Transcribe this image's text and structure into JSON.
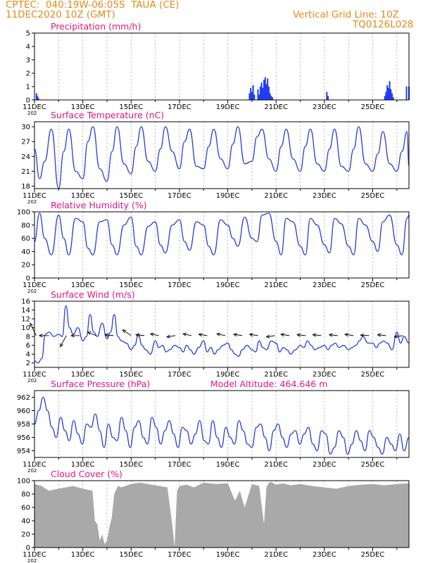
{
  "header": {
    "line1": "CPTEC:  040:19W-06:05S  TAUA (CE)",
    "line2": "11DEC2020 10Z (GMT)",
    "grid_note": "Vertical Grid Line: 10Z",
    "code": "TQ0126L028"
  },
  "colors": {
    "header": "#e08a1a",
    "title": "#e0157a",
    "series": "#2a3fd6",
    "bars": "#1f3df0",
    "cloud": "#a9a9a9",
    "model_alt": "#e0157a"
  },
  "x_tick_labels": [
    "11DEC",
    "13DEC",
    "15DEC",
    "17DEC",
    "19DEC",
    "21DEC",
    "23DEC",
    "25DEC"
  ],
  "year_fragment": "202",
  "chart_data": [
    {
      "id": "precip",
      "type": "bar",
      "title": "Precipitation (mm/h)",
      "ylim": [
        0,
        5
      ],
      "yticks": [
        0,
        1,
        2,
        3,
        4,
        5
      ],
      "x_unit": "days since 11DEC2020 10Z",
      "series": [
        {
          "x": [
            0.08,
            0.12,
            0.16,
            8.9,
            8.95,
            9.0,
            9.05,
            9.1,
            9.25,
            9.3,
            9.35,
            9.4,
            9.45,
            9.5,
            9.55,
            9.6,
            9.65,
            9.7,
            9.75,
            9.8,
            9.85,
            12.1,
            12.15,
            14.5,
            14.55,
            14.6,
            14.65,
            14.7,
            14.75,
            14.8,
            14.85,
            15.4,
            15.5
          ],
          "values": [
            0.5,
            0.3,
            0.15,
            0.5,
            0.9,
            0.6,
            1.1,
            0.4,
            0.8,
            0.4,
            1.0,
            1.3,
            0.9,
            1.5,
            1.7,
            1.2,
            1.6,
            1.0,
            0.5,
            0.3,
            0.2,
            0.6,
            0.3,
            0.3,
            0.6,
            1.1,
            0.9,
            1.4,
            0.8,
            0.5,
            0.2,
            1.0,
            1.0
          ]
        }
      ]
    },
    {
      "id": "temp",
      "type": "line",
      "title": "Surface Temperature (nC)",
      "ylim": [
        17.5,
        31
      ],
      "yticks": [
        18,
        21,
        24,
        27,
        30
      ],
      "series": [
        {
          "x": [
            0,
            0.21,
            0.42,
            0.7,
            1,
            1.21,
            1.42,
            1.7,
            2,
            2.21,
            2.42,
            2.7,
            3,
            3.21,
            3.42,
            3.7,
            4,
            4.21,
            4.42,
            4.7,
            5,
            5.21,
            5.42,
            5.7,
            6,
            6.21,
            6.42,
            6.7,
            7,
            7.21,
            7.42,
            7.7,
            8,
            8.21,
            8.42,
            8.7,
            9,
            9.21,
            9.42,
            9.7,
            10,
            10.21,
            10.42,
            10.7,
            11,
            11.21,
            11.42,
            11.7,
            12,
            12.21,
            12.42,
            12.7,
            13,
            13.21,
            13.42,
            13.7,
            14,
            14.21,
            14.42,
            14.7,
            15,
            15.21,
            15.42,
            15.5
          ],
          "values": [
            25.5,
            19.5,
            23,
            29.5,
            17.5,
            25,
            29.5,
            21,
            19.5,
            27,
            30,
            21.5,
            19,
            25,
            30,
            22.5,
            20.5,
            26,
            30,
            23,
            21,
            25.5,
            30,
            25,
            21.5,
            27,
            29.5,
            22,
            21.5,
            26,
            29.5,
            23.5,
            21.5,
            26.5,
            30,
            22.5,
            23,
            28,
            29.5,
            23.5,
            21,
            26,
            29.5,
            23.5,
            21,
            26,
            29.5,
            22.5,
            21,
            25.5,
            29.5,
            22,
            21,
            25.5,
            30,
            22.5,
            21,
            24.5,
            29,
            22.5,
            21,
            25,
            29,
            22
          ]
        }
      ]
    },
    {
      "id": "rh",
      "type": "line",
      "title": "Relative Humidity (%)",
      "ylim": [
        0,
        100
      ],
      "yticks": [
        0,
        20,
        40,
        60,
        80,
        100
      ],
      "series": [
        {
          "x": [
            0,
            0.21,
            0.42,
            0.7,
            1,
            1.21,
            1.42,
            1.7,
            2,
            2.21,
            2.42,
            2.7,
            3,
            3.21,
            3.42,
            3.7,
            4,
            4.21,
            4.42,
            4.7,
            5,
            5.21,
            5.42,
            5.7,
            6,
            6.21,
            6.42,
            6.7,
            7,
            7.21,
            7.42,
            7.7,
            8,
            8.21,
            8.42,
            8.7,
            9,
            9.21,
            9.42,
            9.7,
            10,
            10.21,
            10.42,
            10.7,
            11,
            11.21,
            11.42,
            11.7,
            12,
            12.21,
            12.42,
            12.7,
            13,
            13.21,
            13.42,
            13.7,
            14,
            14.21,
            14.42,
            14.7,
            15,
            15.21,
            15.42,
            15.5
          ],
          "values": [
            55,
            98,
            60,
            35,
            95,
            60,
            35,
            90,
            85,
            45,
            35,
            85,
            88,
            50,
            35,
            80,
            92,
            48,
            35,
            78,
            85,
            50,
            38,
            80,
            88,
            55,
            42,
            85,
            80,
            48,
            35,
            88,
            80,
            60,
            48,
            92,
            60,
            55,
            95,
            98,
            55,
            35,
            90,
            85,
            48,
            35,
            90,
            80,
            50,
            38,
            90,
            82,
            48,
            35,
            90,
            80,
            55,
            40,
            85,
            95,
            50,
            35,
            90,
            95
          ]
        }
      ]
    },
    {
      "id": "wind",
      "type": "line",
      "title": "Surface Wind (m/s)",
      "ylim": [
        1,
        16
      ],
      "yticks": [
        2,
        4,
        6,
        8,
        10,
        12,
        14,
        16
      ],
      "series": [
        {
          "x": [
            0,
            0.15,
            0.3,
            0.45,
            0.6,
            0.8,
            1,
            1.15,
            1.3,
            1.45,
            1.6,
            1.8,
            2,
            2.15,
            2.3,
            2.45,
            2.6,
            2.8,
            3,
            3.15,
            3.3,
            3.45,
            3.6,
            3.8,
            4,
            4.15,
            4.3,
            4.45,
            4.6,
            4.8,
            5,
            5.15,
            5.3,
            5.45,
            5.6,
            5.8,
            6,
            6.15,
            6.3,
            6.45,
            6.6,
            6.8,
            7,
            7.15,
            7.3,
            7.45,
            7.6,
            7.8,
            8,
            8.15,
            8.3,
            8.45,
            8.6,
            8.8,
            9,
            9.15,
            9.3,
            9.45,
            9.6,
            9.8,
            10,
            10.15,
            10.3,
            10.45,
            10.6,
            10.8,
            11,
            11.15,
            11.3,
            11.45,
            11.6,
            11.8,
            12,
            12.15,
            12.3,
            12.45,
            12.6,
            12.8,
            13,
            13.15,
            13.3,
            13.45,
            13.6,
            13.8,
            14,
            14.15,
            14.3,
            14.45,
            14.6,
            14.8,
            15,
            15.15,
            15.3,
            15.5
          ],
          "values": [
            2.5,
            2,
            3,
            8.5,
            9,
            8,
            8.5,
            8,
            15,
            10,
            8.5,
            10,
            7,
            8,
            13,
            9,
            8,
            11,
            7.5,
            9,
            13,
            8,
            7,
            6.5,
            5,
            6,
            8.5,
            6,
            5,
            4,
            7,
            5.5,
            6,
            4.5,
            5,
            6,
            5.5,
            4.5,
            6,
            5,
            4,
            5.5,
            7,
            4.5,
            5.5,
            4,
            5,
            6,
            6.5,
            5,
            4,
            3.5,
            5,
            6,
            5,
            4.5,
            7,
            5.5,
            5,
            7,
            6.5,
            4.5,
            5.5,
            5,
            4,
            5,
            6,
            5.5,
            7,
            6,
            5,
            5.5,
            6,
            5,
            6,
            6.5,
            5.5,
            6,
            5,
            5.5,
            6,
            7,
            8,
            6.5,
            6.5,
            5.5,
            6.5,
            7,
            6.5,
            5,
            9,
            6.5,
            8,
            6.5
          ]
        }
      ],
      "arrows": [
        {
          "x": 0.07,
          "dx": -0.25,
          "dy": 2.8
        },
        {
          "x": 0.6,
          "dx": -0.4,
          "dy": 0
        },
        {
          "x": 1.32,
          "dx": -0.25,
          "dy": -2.5
        },
        {
          "x": 1.87,
          "dx": -0.35,
          "dy": 0
        },
        {
          "x": 2.55,
          "dx": -0.35,
          "dy": 0.8
        },
        {
          "x": 3.27,
          "dx": -0.35,
          "dy": 0.2
        },
        {
          "x": 4.0,
          "dx": -0.35,
          "dy": 1.3
        },
        {
          "x": 4.55,
          "dx": -0.35,
          "dy": 0.2
        },
        {
          "x": 5.15,
          "dx": -0.35,
          "dy": 0.4
        },
        {
          "x": 5.83,
          "dx": -0.35,
          "dy": -0.3
        },
        {
          "x": 6.5,
          "dx": -0.35,
          "dy": 0.4
        },
        {
          "x": 7.15,
          "dx": -0.35,
          "dy": 0.3
        },
        {
          "x": 7.9,
          "dx": -0.35,
          "dy": 0.4
        },
        {
          "x": 8.6,
          "dx": -0.35,
          "dy": 0.3
        },
        {
          "x": 9.25,
          "dx": -0.35,
          "dy": 0.3
        },
        {
          "x": 9.95,
          "dx": -0.35,
          "dy": -0.3
        },
        {
          "x": 10.55,
          "dx": -0.35,
          "dy": 0.3
        },
        {
          "x": 11.22,
          "dx": -0.35,
          "dy": 0.2
        },
        {
          "x": 11.87,
          "dx": -0.35,
          "dy": 0.2
        },
        {
          "x": 12.55,
          "dx": -0.35,
          "dy": 0.2
        },
        {
          "x": 13.2,
          "dx": -0.35,
          "dy": 0.3
        },
        {
          "x": 13.85,
          "dx": -0.35,
          "dy": 0.1
        },
        {
          "x": 14.55,
          "dx": -0.35,
          "dy": 0.2
        },
        {
          "x": 15.25,
          "dx": -0.35,
          "dy": -0.3
        }
      ]
    },
    {
      "id": "pres",
      "type": "line",
      "title": "Surface Pressure (hPa)",
      "note": "Model Altitude: 464.646 m",
      "ylim": [
        953,
        963
      ],
      "yticks": [
        954,
        956,
        958,
        960,
        962
      ],
      "series": [
        {
          "x": [
            0,
            0.18,
            0.36,
            0.54,
            0.72,
            0.9,
            1.08,
            1.26,
            1.44,
            1.62,
            1.8,
            1.98,
            2.16,
            2.34,
            2.52,
            2.7,
            2.88,
            3.06,
            3.24,
            3.42,
            3.6,
            3.78,
            3.96,
            4.14,
            4.32,
            4.5,
            4.68,
            4.86,
            5.04,
            5.22,
            5.4,
            5.58,
            5.76,
            5.94,
            6.12,
            6.3,
            6.48,
            6.66,
            6.84,
            7.02,
            7.2,
            7.38,
            7.56,
            7.74,
            7.92,
            8.1,
            8.28,
            8.46,
            8.64,
            8.82,
            9,
            9.18,
            9.36,
            9.54,
            9.72,
            9.9,
            10.08,
            10.26,
            10.44,
            10.62,
            10.8,
            10.98,
            11.16,
            11.34,
            11.52,
            11.7,
            11.88,
            12.06,
            12.24,
            12.42,
            12.6,
            12.78,
            12.96,
            13.14,
            13.32,
            13.5,
            13.68,
            13.86,
            14.04,
            14.22,
            14.4,
            14.58,
            14.76,
            14.94,
            15.12,
            15.3,
            15.5
          ],
          "values": [
            958,
            960,
            962,
            960,
            957.5,
            956,
            959,
            957,
            955.5,
            958.5,
            956.5,
            955,
            958,
            957.5,
            959.5,
            957,
            954.5,
            958,
            956,
            955.5,
            959,
            957,
            954.5,
            957.5,
            958.5,
            956,
            955,
            959,
            957.5,
            955,
            957,
            958.5,
            956.5,
            954.5,
            957.5,
            957,
            955,
            956.5,
            958.5,
            955.5,
            955,
            958.5,
            956,
            954.5,
            957.5,
            956,
            955,
            958.5,
            957,
            955,
            954.5,
            957.5,
            958,
            956,
            954,
            957,
            958,
            956,
            954.5,
            956.5,
            957,
            955,
            956.5,
            957.5,
            955,
            954,
            957,
            956.5,
            953.5,
            954.5,
            957,
            956,
            953.5,
            955,
            957,
            955.5,
            954,
            957,
            956,
            954.5,
            953.5,
            956,
            955,
            954,
            956.5,
            954,
            956
          ]
        }
      ]
    },
    {
      "id": "cloud",
      "type": "area",
      "title": "Cloud Cover (%)",
      "ylim": [
        0,
        100
      ],
      "yticks": [
        0,
        20,
        40,
        60,
        80,
        100
      ],
      "series": [
        {
          "x": [
            0,
            0.3,
            0.6,
            1.0,
            1.3,
            1.6,
            2.0,
            2.4,
            2.5,
            2.6,
            2.7,
            2.8,
            2.9,
            3.0,
            3.1,
            3.2,
            3.3,
            3.45,
            3.6,
            4.0,
            4.4,
            5.0,
            5.5,
            5.7,
            5.8,
            5.9,
            6.0,
            6.3,
            6.6,
            7.0,
            7.5,
            8.0,
            8.3,
            8.5,
            8.7,
            9.0,
            9.3,
            9.5,
            9.6,
            9.7,
            9.8,
            10.0,
            10.3,
            10.6,
            11.0,
            11.5,
            12.0,
            12.5,
            13.0,
            13.5,
            14.0,
            14.5,
            15.0,
            15.5
          ],
          "values": [
            95,
            92,
            85,
            88,
            90,
            92,
            88,
            85,
            40,
            35,
            10,
            20,
            5,
            10,
            30,
            45,
            80,
            92,
            90,
            95,
            97,
            93,
            90,
            35,
            2,
            85,
            92,
            94,
            90,
            97,
            95,
            96,
            70,
            85,
            60,
            95,
            92,
            35,
            90,
            97,
            98,
            94,
            96,
            93,
            95,
            92,
            90,
            88,
            92,
            94,
            95,
            93,
            95,
            96
          ]
        }
      ]
    }
  ]
}
